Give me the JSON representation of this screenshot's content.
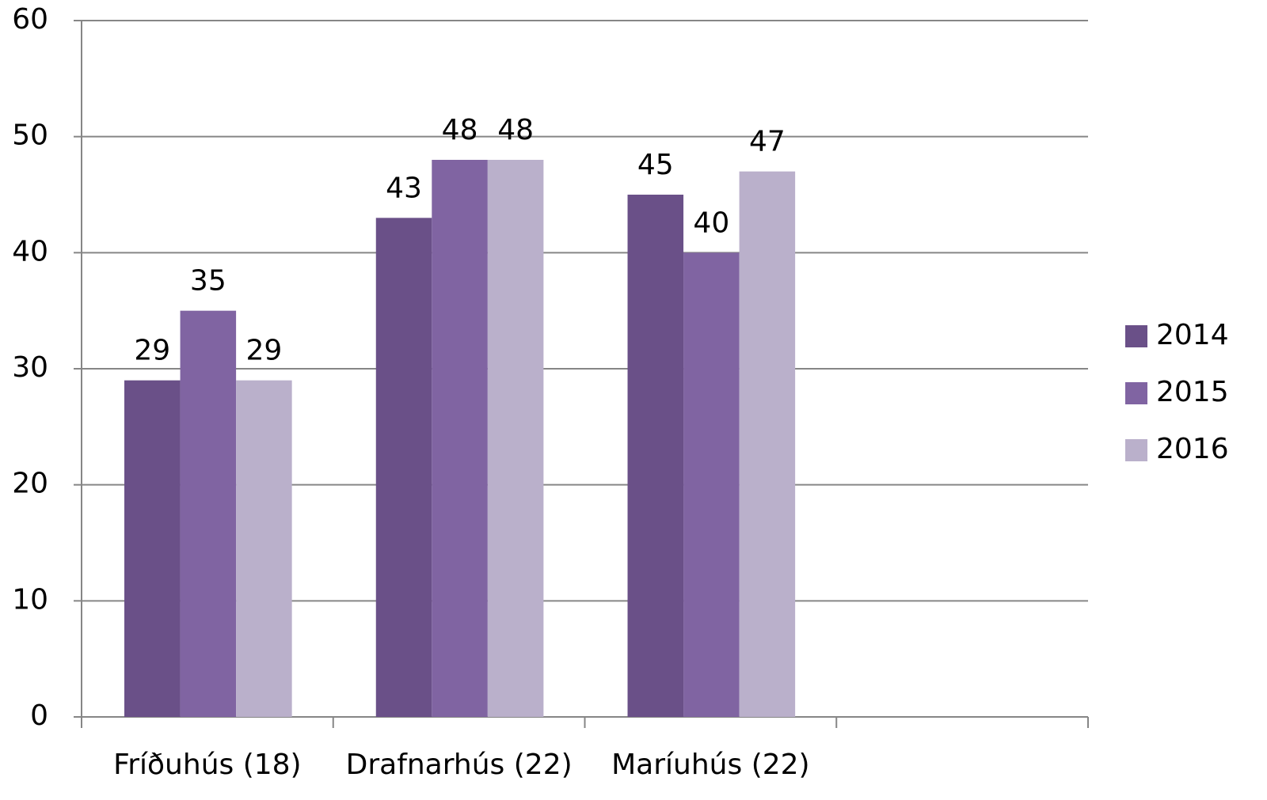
{
  "chart_data": {
    "type": "bar",
    "categories": [
      "Fríðuhús (18)",
      "Drafnarhús (22)",
      "Maríuhús (22)",
      null
    ],
    "series": [
      {
        "name": "2014",
        "color": "#6a5088",
        "values": [
          29,
          43,
          45,
          null
        ]
      },
      {
        "name": "2015",
        "color": "#8064a2",
        "values": [
          35,
          48,
          40,
          null
        ]
      },
      {
        "name": "2016",
        "color": "#bab0cb",
        "values": [
          29,
          48,
          47,
          null
        ]
      }
    ],
    "ylim": [
      0,
      60
    ],
    "yticks": [
      0,
      10,
      20,
      30,
      40,
      50,
      60
    ],
    "grid": true,
    "legend": "right"
  }
}
